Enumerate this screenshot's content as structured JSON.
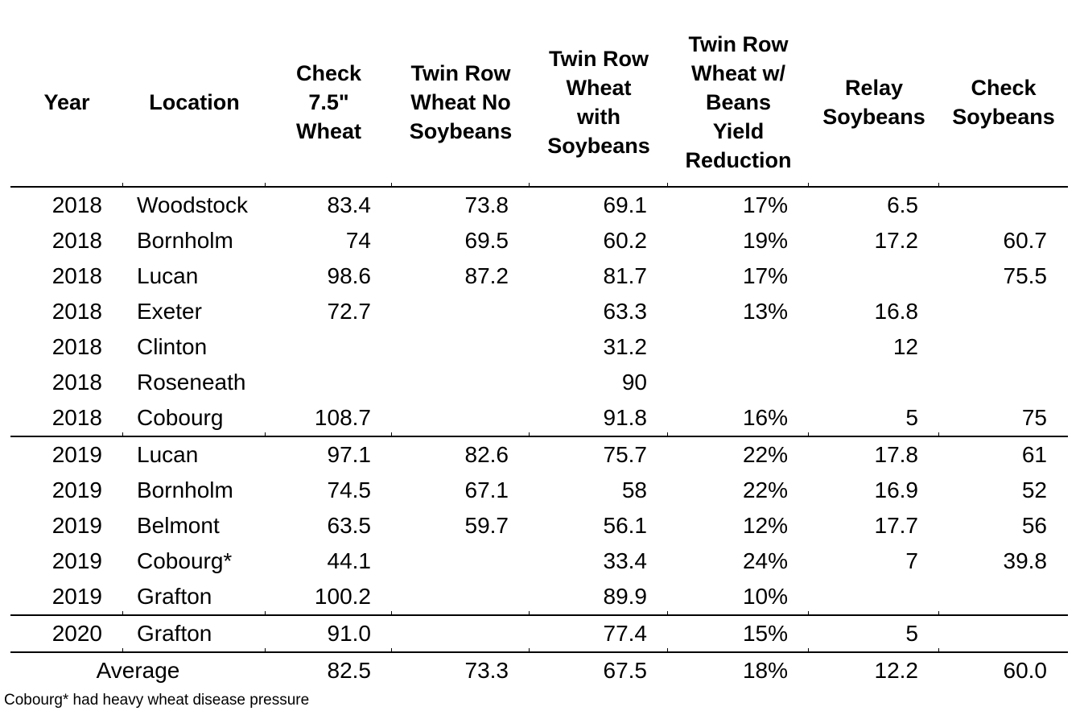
{
  "table": {
    "columns": [
      {
        "key": "year",
        "label": "Year"
      },
      {
        "key": "location",
        "label": "Location"
      },
      {
        "key": "check-wheat",
        "label": "Check\n7.5\"\nWheat"
      },
      {
        "key": "twin-row-wheat-no-soybeans",
        "label": "Twin Row\nWheat No\nSoybeans"
      },
      {
        "key": "twin-row-wheat-with-soybeans",
        "label": "Twin Row\nWheat\nwith\nSoybeans"
      },
      {
        "key": "twin-row-yield-reduction",
        "label": "Twin Row\nWheat w/\nBeans\nYield\nReduction"
      },
      {
        "key": "relay-soybeans",
        "label": "Relay\nSoybeans"
      },
      {
        "key": "check-soybeans",
        "label": "Check\nSoybeans"
      }
    ],
    "rows": [
      {
        "cells": [
          "2018",
          "Woodstock",
          "83.4",
          "73.8",
          "69.1",
          "17%",
          "6.5",
          ""
        ]
      },
      {
        "cells": [
          "2018",
          "Bornholm",
          "74",
          "69.5",
          "60.2",
          "19%",
          "17.2",
          "60.7"
        ]
      },
      {
        "cells": [
          "2018",
          "Lucan",
          "98.6",
          "87.2",
          "81.7",
          "17%",
          "",
          "75.5"
        ]
      },
      {
        "cells": [
          "2018",
          "Exeter",
          "72.7",
          "",
          "63.3",
          "13%",
          "16.8",
          ""
        ]
      },
      {
        "cells": [
          "2018",
          "Clinton",
          "",
          "",
          "31.2",
          "",
          "12",
          ""
        ]
      },
      {
        "cells": [
          "2018",
          "Roseneath",
          "",
          "",
          "90",
          "",
          "",
          ""
        ]
      },
      {
        "cells": [
          "2018",
          "Cobourg",
          "108.7",
          "",
          "91.8",
          "16%",
          "5",
          "75"
        ]
      },
      {
        "cells": [
          "2019",
          "Lucan",
          "97.1",
          "82.6",
          "75.7",
          "22%",
          "17.8",
          "61"
        ]
      },
      {
        "cells": [
          "2019",
          "Bornholm",
          "74.5",
          "67.1",
          "58",
          "22%",
          "16.9",
          "52"
        ]
      },
      {
        "cells": [
          "2019",
          "Belmont",
          "63.5",
          "59.7",
          "56.1",
          "12%",
          "17.7",
          "56"
        ]
      },
      {
        "cells": [
          "2019",
          "Cobourg*",
          "44.1",
          "",
          "33.4",
          "24%",
          "7",
          "39.8"
        ]
      },
      {
        "cells": [
          "2019",
          "Grafton",
          "100.2",
          "",
          "89.9",
          "10%",
          "",
          ""
        ]
      },
      {
        "cells": [
          "2020",
          "Grafton",
          "91.0",
          "",
          "77.4",
          "15%",
          "5",
          ""
        ]
      }
    ],
    "average": {
      "label": "Average",
      "cells": [
        "82.5",
        "73.3",
        "67.5",
        "18%",
        "12.2",
        "60.0"
      ]
    },
    "footnote": "Cobourg* had heavy wheat disease pressure",
    "text_color": "#000000",
    "rule_color": "#000000"
  }
}
